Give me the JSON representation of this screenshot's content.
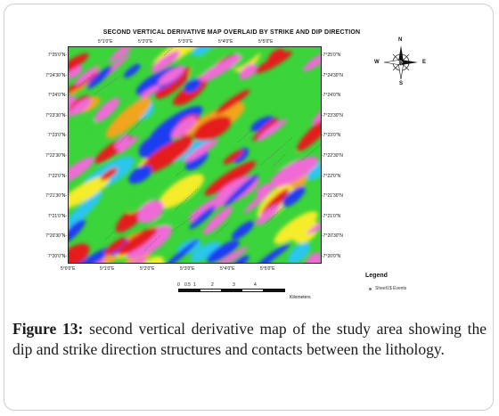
{
  "map": {
    "title": "SECOND VERTICAL DERIVATIVE MAP OVERLAID BY STRIKE AND DIP DIRECTION",
    "lat_labels_left": [
      "7°25'0\"N",
      "7°24'30\"N",
      "7°24'0\"N",
      "7°23'30\"N",
      "7°23'0\"N",
      "7°22'30\"N",
      "7°22'0\"N",
      "7°21'30\"N",
      "7°21'0\"N",
      "7°20'30\"N",
      "7°20'0\"N"
    ],
    "lat_labels_right": [
      "7°25'0\"N",
      "7°24'30\"N",
      "7°24'0\"N",
      "7°23'30\"N",
      "7°23'0\"N",
      "7°22'30\"N",
      "7°22'0\"N",
      "7°21'30\"N",
      "7°21'0\"N",
      "7°20'30\"N",
      "7°20'0\"N"
    ],
    "lon_labels_top": [
      "5°1'0\"E",
      "5°2'0\"E",
      "5°3'0\"E",
      "5°4'0\"E",
      "5°5'0\"E"
    ],
    "lon_labels_bottom": [
      "5°0'0\"E",
      "5°1'0\"E",
      "5°2'0\"E",
      "5°3'0\"E",
      "5°4'0\"E",
      "5°5'0\"E"
    ],
    "colors": {
      "pink": "#f06bd7",
      "red": "#e51c1c",
      "orange": "#f2a41e",
      "yellow": "#f5ec2a",
      "green": "#3bd43a",
      "cyan": "#29c6ee",
      "blue": "#1c3ef2"
    }
  },
  "compass": {
    "n": "N",
    "s": "S",
    "e": "E",
    "w": "W"
  },
  "scale": {
    "labels": [
      "0",
      "0.5",
      "1",
      "2",
      "3",
      "4"
    ],
    "unit": "Kilometers"
  },
  "legend": {
    "title": "Legend",
    "entry": "Sheet1$ Events"
  },
  "caption": {
    "label": "Figure 13:",
    "text": " second vertical derivative map of the study area showing the dip and strike direction structures and contacts between the lithology."
  }
}
